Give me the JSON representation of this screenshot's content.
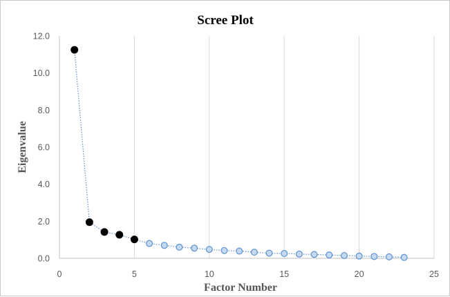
{
  "chart_data": {
    "type": "scatter",
    "title": "Scree Plot",
    "xlabel": "Factor Number",
    "ylabel": "Eigenvalue",
    "xlim": [
      0,
      25
    ],
    "ylim": [
      0,
      12
    ],
    "x_ticks": [
      "0",
      "5",
      "10",
      "15",
      "20",
      "25"
    ],
    "y_ticks": [
      "0.0",
      "2.0",
      "4.0",
      "6.0",
      "8.0",
      "10.0",
      "12.0"
    ],
    "grid": "vertical",
    "legend": "none",
    "line_style": "dotted",
    "colors": {
      "line": "#5b8fd0",
      "retained_fill": "#000000",
      "other_fill": "#c5d9f1",
      "other_stroke": "#5b8fd0",
      "grid": "#d9d9d9"
    },
    "series": [
      {
        "x": [
          1,
          2,
          3,
          4,
          5,
          6,
          7,
          8,
          9,
          10,
          11,
          12,
          13,
          14,
          15,
          16,
          17,
          18,
          19,
          20,
          21,
          22,
          23
        ],
        "y": [
          11.25,
          1.95,
          1.42,
          1.27,
          1.02,
          0.8,
          0.7,
          0.6,
          0.55,
          0.48,
          0.42,
          0.39,
          0.33,
          0.28,
          0.26,
          0.23,
          0.21,
          0.18,
          0.15,
          0.12,
          0.1,
          0.08,
          0.05
        ],
        "retained": [
          true,
          true,
          true,
          true,
          true,
          false,
          false,
          false,
          false,
          false,
          false,
          false,
          false,
          false,
          false,
          false,
          false,
          false,
          false,
          false,
          false,
          false,
          false
        ]
      }
    ]
  }
}
